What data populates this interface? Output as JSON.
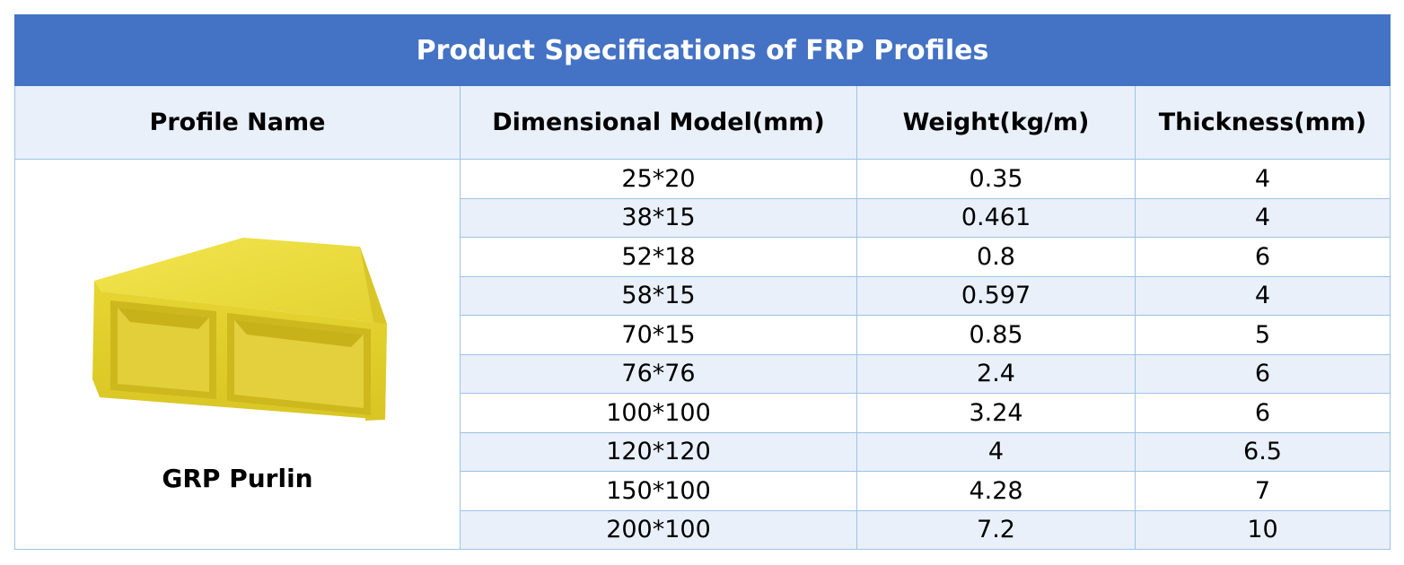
{
  "table": {
    "title": "Product Specifications of FRP Profiles",
    "headers": [
      "Profile Name",
      "Dimensional Model(mm)",
      "Weight(kg/m)",
      "Thickness(mm)"
    ],
    "profile": {
      "name": "GRP Purlin",
      "image_icon": "yellow-grp-purlin-profile"
    },
    "rows": [
      {
        "model": "25*20",
        "weight": "0.35",
        "thickness": "4"
      },
      {
        "model": "38*15",
        "weight": "0.461",
        "thickness": "4"
      },
      {
        "model": "52*18",
        "weight": "0.8",
        "thickness": "6"
      },
      {
        "model": "58*15",
        "weight": "0.597",
        "thickness": "4"
      },
      {
        "model": "70*15",
        "weight": "0.85",
        "thickness": "5"
      },
      {
        "model": "76*76",
        "weight": "2.4",
        "thickness": "6"
      },
      {
        "model": "100*100",
        "weight": "3.24",
        "thickness": "6"
      },
      {
        "model": "120*120",
        "weight": "4",
        "thickness": "6.5"
      },
      {
        "model": "150*100",
        "weight": "4.28",
        "thickness": "7"
      },
      {
        "model": "200*100",
        "weight": "7.2",
        "thickness": "10"
      }
    ]
  },
  "colors": {
    "title_bg": "#4472c4",
    "title_text": "#ffffff",
    "header_bg": "#e9f0fa",
    "stripe_bg": "#e9f0fa",
    "border": "#9dc3e6",
    "profile_yellow": "#e8d93a"
  }
}
